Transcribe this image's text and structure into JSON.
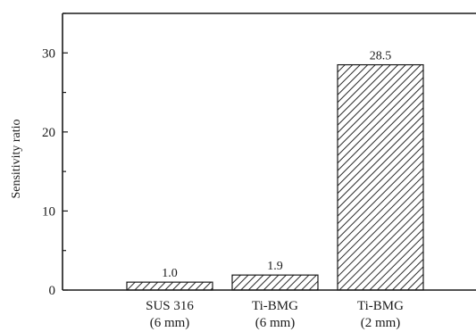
{
  "chart_data": {
    "type": "bar",
    "categories": [
      {
        "line1": "SUS 316",
        "line2": "(6 mm)"
      },
      {
        "line1": "Ti-BMG",
        "line2": "(6 mm)"
      },
      {
        "line1": "Ti-BMG",
        "line2": "(2 mm)"
      }
    ],
    "values": [
      1.0,
      1.9,
      28.5
    ],
    "data_labels": [
      "1.0",
      "1.9",
      "28.5"
    ],
    "ylabel": "Sensitivity ratio",
    "ylim": [
      0,
      35
    ],
    "yticks": [
      0,
      10,
      20,
      30
    ],
    "grid": false,
    "bar_fill": "diagonal-hatch",
    "colors": {
      "axis": "#1a1a1a",
      "hatch": "#2a2a2a",
      "bar_bg": "#ffffff"
    }
  }
}
